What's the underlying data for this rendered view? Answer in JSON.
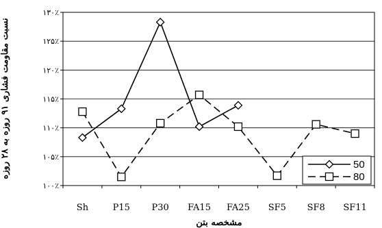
{
  "chart_data": {
    "type": "line",
    "categories": [
      "Sh",
      "P15",
      "P30",
      "FA15",
      "FA25",
      "SF5",
      "SF8",
      "SF11"
    ],
    "y_ticks": [
      "۱۰۰٪",
      "۱۰۵٪",
      "۱۱۰٪",
      "۱۱۵٪",
      "۱۲۰٪",
      "۱۲۵٪",
      "۱۳۰٪"
    ],
    "ylim": [
      100,
      130
    ],
    "xlabel": "مشخصه بتن",
    "ylabel": "نسبت مقاومت فشاری ۹۱ روزه به ۲۸ روزه",
    "legend_position": "bottom-right",
    "grid": "horizontal",
    "series": [
      {
        "name": "50",
        "marker": "diamond",
        "dash": "solid",
        "values": [
          108.3,
          113.3,
          128.3,
          110.2,
          113.9,
          null,
          null,
          null
        ]
      },
      {
        "name": "80",
        "marker": "square",
        "dash": "dashed",
        "values": [
          112.8,
          101.5,
          110.8,
          115.7,
          110.2,
          101.7,
          110.6,
          109.0
        ]
      }
    ]
  }
}
